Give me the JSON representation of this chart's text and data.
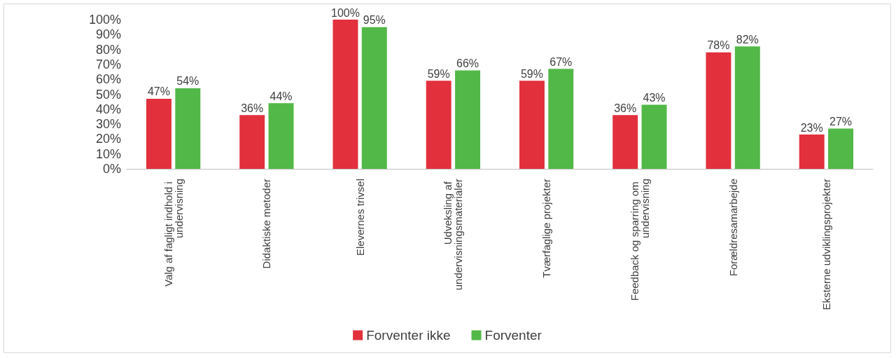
{
  "chart_data": {
    "type": "bar",
    "categories": [
      "Valg af fagligt indhold i undervisning",
      "Didaktiske metoder",
      "Elevernes trivsel",
      "Udveksling af undervisningsmaterialer",
      "Tværfaglige projekter",
      "Feedback og sparring om undervisning",
      "Forældresamarbejde",
      "Eksterne udviklingsprojekter"
    ],
    "series": [
      {
        "name": "Forventer ikke",
        "color": "#e2303d",
        "values": [
          47,
          36,
          100,
          59,
          59,
          36,
          78,
          23
        ],
        "value_labels": [
          "47%",
          "36%",
          "100%",
          "59%",
          "59%",
          "36%",
          "78%",
          "23%"
        ]
      },
      {
        "name": "Forventer",
        "color": "#52b848",
        "values": [
          54,
          44,
          95,
          66,
          67,
          43,
          82,
          27
        ],
        "value_labels": [
          "54%",
          "44%",
          "95%",
          "66%",
          "67%",
          "43%",
          "82%",
          "27%"
        ]
      }
    ],
    "ylim": [
      0,
      100
    ],
    "yticks": [
      {
        "value": 0,
        "label": "0%"
      },
      {
        "value": 10,
        "label": "10%"
      },
      {
        "value": 20,
        "label": "20%"
      },
      {
        "value": 30,
        "label": "30%"
      },
      {
        "value": 40,
        "label": "40%"
      },
      {
        "value": 50,
        "label": "50%"
      },
      {
        "value": 60,
        "label": "60%"
      },
      {
        "value": 70,
        "label": "70%"
      },
      {
        "value": 80,
        "label": "80%"
      },
      {
        "value": 90,
        "label": "90%"
      },
      {
        "value": 100,
        "label": "100%"
      }
    ],
    "grid": false,
    "legend": "bottom"
  }
}
